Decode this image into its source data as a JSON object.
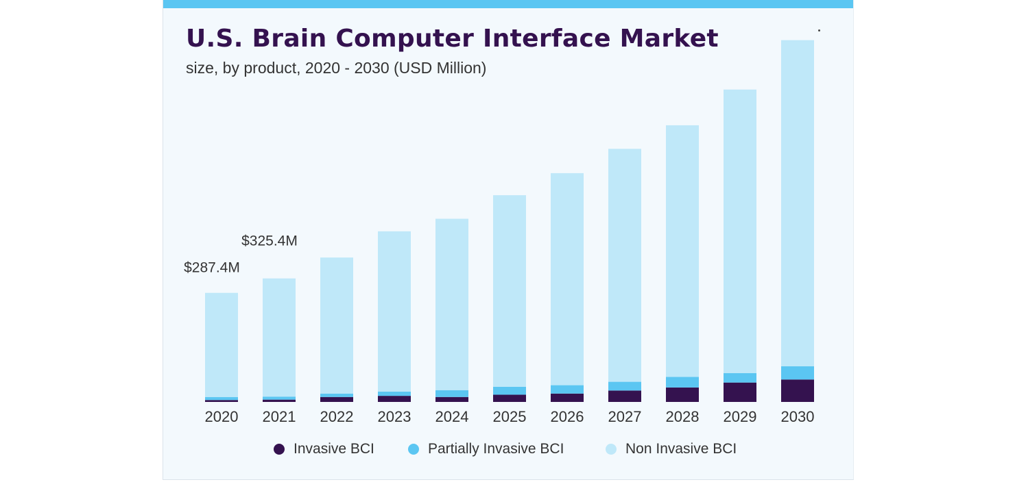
{
  "title": "U.S. Brain Computer Interface Market",
  "subtitle": "size, by product, 2020 - 2030 (USD Million)",
  "colors": {
    "invasive": "#34124f",
    "partial": "#5bc6f2",
    "non_invasive": "#bfe8f9",
    "accent_bar": "#5bc6f2",
    "text": "#333333"
  },
  "legend": [
    {
      "label": "Invasive BCI",
      "color": "#34124f"
    },
    {
      "label": "Partially Invasive BCI",
      "color": "#5bc6f2"
    },
    {
      "label": "Non Invasive BCI",
      "color": "#bfe8f9"
    }
  ],
  "chart_data": {
    "type": "bar",
    "stacked": true,
    "categories": [
      "2020",
      "2021",
      "2022",
      "2023",
      "2024",
      "2025",
      "2026",
      "2027",
      "2028",
      "2029",
      "2030"
    ],
    "series": [
      {
        "name": "Invasive BCI",
        "values": [
          5,
          6,
          13,
          16,
          13,
          19,
          22,
          30,
          38,
          51,
          59
        ]
      },
      {
        "name": "Partially Invasive BCI",
        "values": [
          8,
          8,
          9,
          11,
          18,
          21,
          22,
          23,
          28,
          25,
          35
        ]
      },
      {
        "name": "Non Invasive BCI",
        "values": [
          274,
          311,
          358,
          422,
          451,
          504,
          558,
          613,
          662,
          746,
          858
        ]
      }
    ],
    "data_labels": [
      {
        "category": "2020",
        "text": "$287.4M"
      },
      {
        "category": "2021",
        "text": "$325.4M"
      }
    ],
    "ylim": [
      0,
      1000
    ],
    "grid": false,
    "legend_position": "bottom"
  }
}
